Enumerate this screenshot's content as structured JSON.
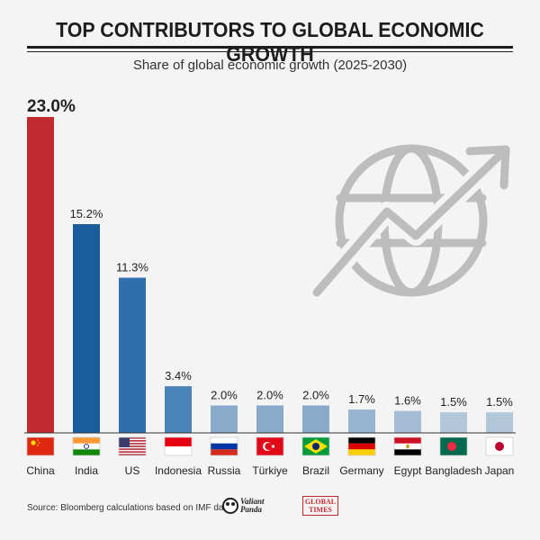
{
  "header": {
    "title": "TOP CONTRIBUTORS TO GLOBAL ECONOMIC GROWTH",
    "subtitle": "Share of global economic growth (2025-2030)"
  },
  "footer": {
    "source": "Source: Bloomberg calculations based on IMF data",
    "logo_valiant_panda": "Valiant Panda",
    "logo_global_times_1": "GLOBAL",
    "logo_global_times_2": "TIMES"
  },
  "colors": {
    "china": "#c0292e",
    "dark_blue": "#1a5d9c",
    "mid_blue": "#3f7db5",
    "light_blue": "#8aaac9",
    "lighter_blue": "#b5c8db",
    "icon_gray": "#bdbdbd"
  },
  "chart_data": {
    "type": "bar",
    "title": "TOP CONTRIBUTORS TO GLOBAL ECONOMIC GROWTH",
    "subtitle": "Share of global economic growth (2025-2030)",
    "categories": [
      "China",
      "India",
      "US",
      "Indonesia",
      "Russia",
      "Türkiye",
      "Brazil",
      "Germany",
      "Egypt",
      "Bangladesh",
      "Japan"
    ],
    "values": [
      23.0,
      15.2,
      11.3,
      3.4,
      2.0,
      2.0,
      2.0,
      1.7,
      1.6,
      1.5,
      1.5
    ],
    "value_labels": [
      "23.0%",
      "15.2%",
      "11.3%",
      "3.4%",
      "2.0%",
      "2.0%",
      "2.0%",
      "1.7%",
      "1.6%",
      "1.5%",
      "1.5%"
    ],
    "bar_colors": [
      "#c0292e",
      "#1a5d9c",
      "#2f6fae",
      "#4a84b8",
      "#8aaac9",
      "#8aaac9",
      "#8aaac9",
      "#97b4d0",
      "#a4bdd4",
      "#b3c7da",
      "#b3c7da"
    ],
    "flags": [
      "china-flag-icon",
      "india-flag-icon",
      "us-flag-icon",
      "indonesia-flag-icon",
      "russia-flag-icon",
      "turkiye-flag-icon",
      "brazil-flag-icon",
      "germany-flag-icon",
      "egypt-flag-icon",
      "bangladesh-flag-icon",
      "japan-flag-icon"
    ],
    "xlabel": "",
    "ylabel": "",
    "ylim": [
      0,
      23
    ],
    "grid": false,
    "legend": "none"
  }
}
